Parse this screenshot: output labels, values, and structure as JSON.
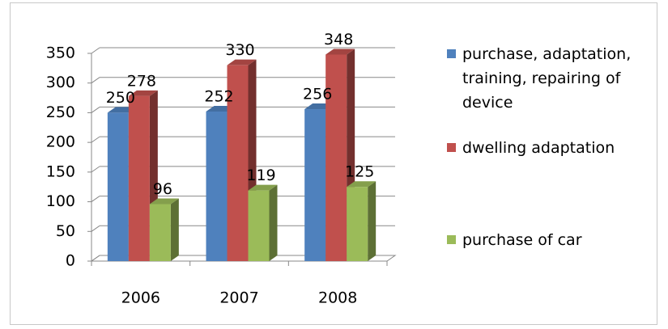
{
  "chart_data": {
    "type": "bar3d",
    "categories": [
      "2006",
      "2007",
      "2008"
    ],
    "series": [
      {
        "name": "purchase, adaptation, training, repairing of device",
        "color": "#4f81bd",
        "values": [
          250,
          252,
          256
        ]
      },
      {
        "name": "dwelling adaptation",
        "color": "#c0504d",
        "values": [
          278,
          330,
          348
        ]
      },
      {
        "name": "purchase of car",
        "color": "#9bbb59",
        "values": [
          96,
          119,
          125
        ]
      }
    ],
    "ylim": [
      0,
      350
    ],
    "yticks": [
      0,
      50,
      100,
      150,
      200,
      250,
      300,
      350
    ],
    "grid": true,
    "legend": "right"
  }
}
